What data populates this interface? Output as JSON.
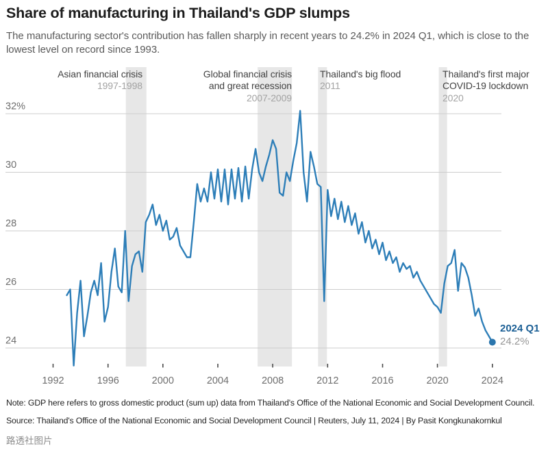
{
  "header": {
    "title": "Share of manufacturing in Thailand's GDP slumps",
    "subtitle": "The manufacturing sector's contribution has fallen sharply in recent years to 24.2% in 2024 Q1, which is close to the lowest level on record since 1993."
  },
  "chart_data": {
    "type": "line",
    "series_name": "Manufacturing share of Thailand's GDP",
    "unit": "% of GDP",
    "frequency": "quarterly",
    "x_start": 1993.0,
    "x_step": 0.25,
    "values": [
      25.8,
      26.0,
      23.4,
      25.2,
      26.3,
      24.4,
      25.1,
      25.9,
      26.3,
      25.8,
      26.9,
      24.9,
      25.4,
      26.6,
      27.4,
      26.1,
      25.9,
      28.0,
      25.6,
      26.8,
      27.2,
      27.3,
      26.6,
      28.3,
      28.55,
      28.9,
      28.2,
      28.55,
      28.0,
      28.35,
      27.7,
      27.8,
      28.1,
      27.5,
      27.3,
      27.1,
      27.1,
      28.3,
      29.6,
      29.0,
      29.45,
      29.0,
      30.0,
      29.1,
      30.1,
      29.0,
      30.1,
      28.9,
      30.1,
      29.1,
      30.15,
      29.0,
      30.2,
      29.1,
      30.1,
      30.8,
      30.0,
      29.7,
      30.2,
      30.6,
      31.1,
      30.8,
      29.3,
      29.2,
      30.0,
      29.7,
      30.4,
      31.0,
      32.1,
      30.0,
      29.0,
      30.7,
      30.2,
      29.6,
      29.5,
      25.6,
      29.4,
      28.5,
      29.1,
      28.4,
      29.0,
      28.3,
      28.85,
      28.2,
      28.6,
      27.9,
      28.3,
      27.6,
      28.0,
      27.4,
      27.7,
      27.2,
      27.6,
      27.0,
      27.3,
      26.9,
      27.1,
      26.6,
      26.9,
      26.7,
      26.8,
      26.4,
      26.6,
      26.3,
      26.1,
      25.9,
      25.7,
      25.5,
      25.4,
      25.2,
      26.2,
      26.8,
      26.9,
      27.35,
      25.95,
      26.9,
      26.75,
      26.4,
      25.8,
      25.1,
      25.35,
      24.9,
      24.6,
      24.4,
      24.2
    ],
    "ylim": [
      23.2,
      32.6
    ],
    "yticks": [
      {
        "value": 32,
        "label": "32%"
      },
      {
        "value": 30,
        "label": "30"
      },
      {
        "value": 28,
        "label": "28"
      },
      {
        "value": 26,
        "label": "26"
      },
      {
        "value": 24,
        "label": "24"
      }
    ],
    "xticks": [
      "1992",
      "1996",
      "2000",
      "2004",
      "2008",
      "2012",
      "2016",
      "2020",
      "2024"
    ],
    "grid": "horizontal",
    "legend": "none",
    "line_color": "#2d7eb8",
    "band_color": "#e7e7e7",
    "event_bands": [
      {
        "name": "asian-financial-crisis",
        "x_from": 1997.3,
        "x_to": 1998.8
      },
      {
        "name": "global-financial-crisis",
        "x_from": 2006.9,
        "x_to": 2009.4
      },
      {
        "name": "thailand-big-flood",
        "x_from": 2011.3,
        "x_to": 2011.95
      },
      {
        "name": "covid-lockdown",
        "x_from": 2020.1,
        "x_to": 2020.7
      }
    ],
    "annotations": {
      "asian": {
        "line1": "Asian financial crisis",
        "year": "1997-1998"
      },
      "gfc": {
        "line1": "Global financial crisis",
        "line2": "and great recession",
        "year": "2007-2009"
      },
      "flood": {
        "line1": "Thailand's big flood",
        "year": "2011"
      },
      "covid": {
        "line1": "Thailand's first major",
        "line2": "COVID-19 lockdown",
        "year": "2020"
      }
    },
    "end_label": {
      "title": "2024 Q1",
      "value": "24.2%"
    }
  },
  "footer": {
    "note": "Note: GDP here refers to gross domestic product (sum up) data from Thailand's Office of the National Economic and Social Development Council.",
    "source": "Source: Thailand's Office of the National Economic and Social Development Council | Reuters, July 11, 2024 | By Pasit Kongkunakornkul",
    "watermark": "路透社图片"
  }
}
